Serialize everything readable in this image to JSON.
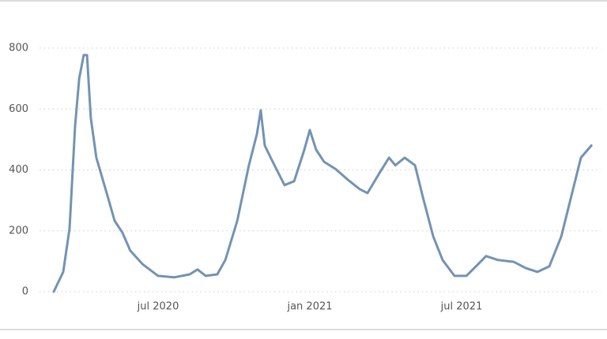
{
  "chart_data": {
    "type": "line",
    "x": [
      1.875,
      2.25,
      2.5,
      2.72,
      2.88,
      3.06,
      3.19,
      3.34,
      3.56,
      3.97,
      4.28,
      4.59,
      4.9,
      5.38,
      6,
      6.63,
      7.25,
      7.56,
      7.88,
      8.34,
      8.66,
      9.13,
      9.59,
      9.91,
      10.06,
      10.22,
      10.53,
      11,
      11.38,
      11.78,
      12,
      12.25,
      12.56,
      13.03,
      13.5,
      13.97,
      14.28,
      14.75,
      15.13,
      15.38,
      15.75,
      16.16,
      16.47,
      16.88,
      17.25,
      17.72,
      18.19,
      18.66,
      18.97,
      19.44,
      20.06,
      20.53,
      21,
      21.47,
      21.94,
      22.41,
      22.72,
      23.13
    ],
    "series": [
      {
        "color": "#7393b3",
        "values": [
          0,
          65,
          207,
          544,
          700,
          777,
          777,
          570,
          440,
          324,
          233,
          194,
          135,
          91,
          52,
          47,
          57,
          73,
          52,
          57,
          104,
          233,
          415,
          518,
          596,
          480,
          427,
          350,
          363,
          466,
          531,
          466,
          427,
          402,
          368,
          337,
          324,
          389,
          440,
          415,
          440,
          415,
          311,
          181,
          104,
          52,
          52,
          91,
          117,
          104,
          98,
          78,
          65,
          83,
          181,
          337,
          440,
          480
        ]
      }
    ],
    "xlim": [
      1.0,
      23.5
    ],
    "xticks": [
      {
        "value": 6,
        "label": "jul 2020"
      },
      {
        "value": 12,
        "label": "jan 2021"
      },
      {
        "value": 18,
        "label": "jul 2021"
      }
    ],
    "ylim": [
      0,
      800
    ],
    "yticks": [
      0,
      200,
      400,
      600,
      800
    ],
    "grid": true
  }
}
